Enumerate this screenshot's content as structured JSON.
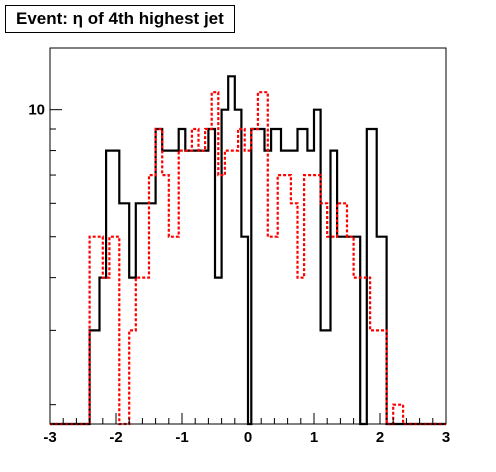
{
  "chart_data": {
    "type": "histogram",
    "title": "Event: η of 4th highest jet",
    "xlabel": "",
    "ylabel": "",
    "xlim": [
      -3,
      3
    ],
    "ylim": [
      1.8,
      14
    ],
    "ylog": true,
    "bin_edges": [
      -3.0,
      -2.8,
      -2.6,
      -2.4,
      -2.2,
      -2.0,
      -1.8,
      -1.6,
      -1.4,
      -1.2,
      -1.0,
      -0.8,
      -0.6,
      -0.4,
      -0.2,
      0.0,
      0.2,
      0.4,
      0.6,
      0.8,
      1.0,
      1.2,
      1.4,
      1.6,
      1.8,
      2.0,
      2.2,
      2.4,
      2.6,
      2.8,
      3.0
    ],
    "x_ticks": [
      -3,
      -2,
      -1,
      0,
      1,
      2,
      3
    ],
    "x_tick_labels": [
      "-3",
      "-2",
      "-1",
      "0",
      "1",
      "2",
      "3"
    ],
    "y_tick_labels": [
      {
        "value": 10,
        "label": "10"
      }
    ],
    "grid": false,
    "legend": "none",
    "series": [
      {
        "style": "solid",
        "color": "#000000",
        "steps": [
          [
            -3.0,
            0.0
          ],
          [
            -2.4,
            3.0
          ],
          [
            -2.25,
            4.0
          ],
          [
            -2.15,
            8.0
          ],
          [
            -1.95,
            6.0
          ],
          [
            -1.8,
            4.0
          ],
          [
            -1.7,
            6.0
          ],
          [
            -1.4,
            9.0
          ],
          [
            -1.3,
            8.0
          ],
          [
            -1.05,
            9.0
          ],
          [
            -0.95,
            8.0
          ],
          [
            -0.6,
            9.0
          ],
          [
            -0.5,
            4.0
          ],
          [
            -0.4,
            10.0
          ],
          [
            -0.3,
            12.0
          ],
          [
            -0.2,
            10.0
          ],
          [
            -0.1,
            5.0
          ],
          [
            -0.0,
            0.0
          ],
          [
            0.05,
            9.0
          ],
          [
            0.25,
            8.0
          ],
          [
            0.35,
            9.0
          ],
          [
            0.5,
            8.0
          ],
          [
            0.75,
            9.0
          ],
          [
            0.9,
            8.0
          ],
          [
            1.0,
            10.0
          ],
          [
            1.1,
            3.0
          ],
          [
            1.25,
            8.0
          ],
          [
            1.35,
            5.0
          ],
          [
            1.7,
            0.0
          ],
          [
            1.8,
            9.0
          ],
          [
            1.95,
            5.0
          ],
          [
            2.1,
            0.0
          ],
          [
            3.0,
            0.0
          ]
        ]
      },
      {
        "style": "dotted",
        "color": "#ff0000",
        "steps": [
          [
            -3.0,
            0.0
          ],
          [
            -2.4,
            5.0
          ],
          [
            -2.2,
            4.0
          ],
          [
            -2.1,
            5.0
          ],
          [
            -1.95,
            0.0
          ],
          [
            -1.8,
            3.0
          ],
          [
            -1.7,
            4.0
          ],
          [
            -1.5,
            7.0
          ],
          [
            -1.4,
            9.0
          ],
          [
            -1.3,
            7.0
          ],
          [
            -1.2,
            5.0
          ],
          [
            -1.05,
            8.0
          ],
          [
            -0.85,
            9.0
          ],
          [
            -0.75,
            8.0
          ],
          [
            -0.65,
            9.0
          ],
          [
            -0.55,
            11.0
          ],
          [
            -0.45,
            7.0
          ],
          [
            -0.35,
            8.0
          ],
          [
            -0.15,
            9.0
          ],
          [
            -0.05,
            8.0
          ],
          [
            0.05,
            9.0
          ],
          [
            0.15,
            11.0
          ],
          [
            0.3,
            5.0
          ],
          [
            0.45,
            7.0
          ],
          [
            0.65,
            6.0
          ],
          [
            0.75,
            4.0
          ],
          [
            0.85,
            7.0
          ],
          [
            1.1,
            6.0
          ],
          [
            1.2,
            5.0
          ],
          [
            1.35,
            6.0
          ],
          [
            1.5,
            5.0
          ],
          [
            1.6,
            4.0
          ],
          [
            1.75,
            4.0
          ],
          [
            1.85,
            3.0
          ],
          [
            2.1,
            1.0
          ],
          [
            2.2,
            2.0
          ],
          [
            2.35,
            1.0
          ],
          [
            2.4,
            0.0
          ],
          [
            3.0,
            0.0
          ]
        ]
      }
    ]
  }
}
